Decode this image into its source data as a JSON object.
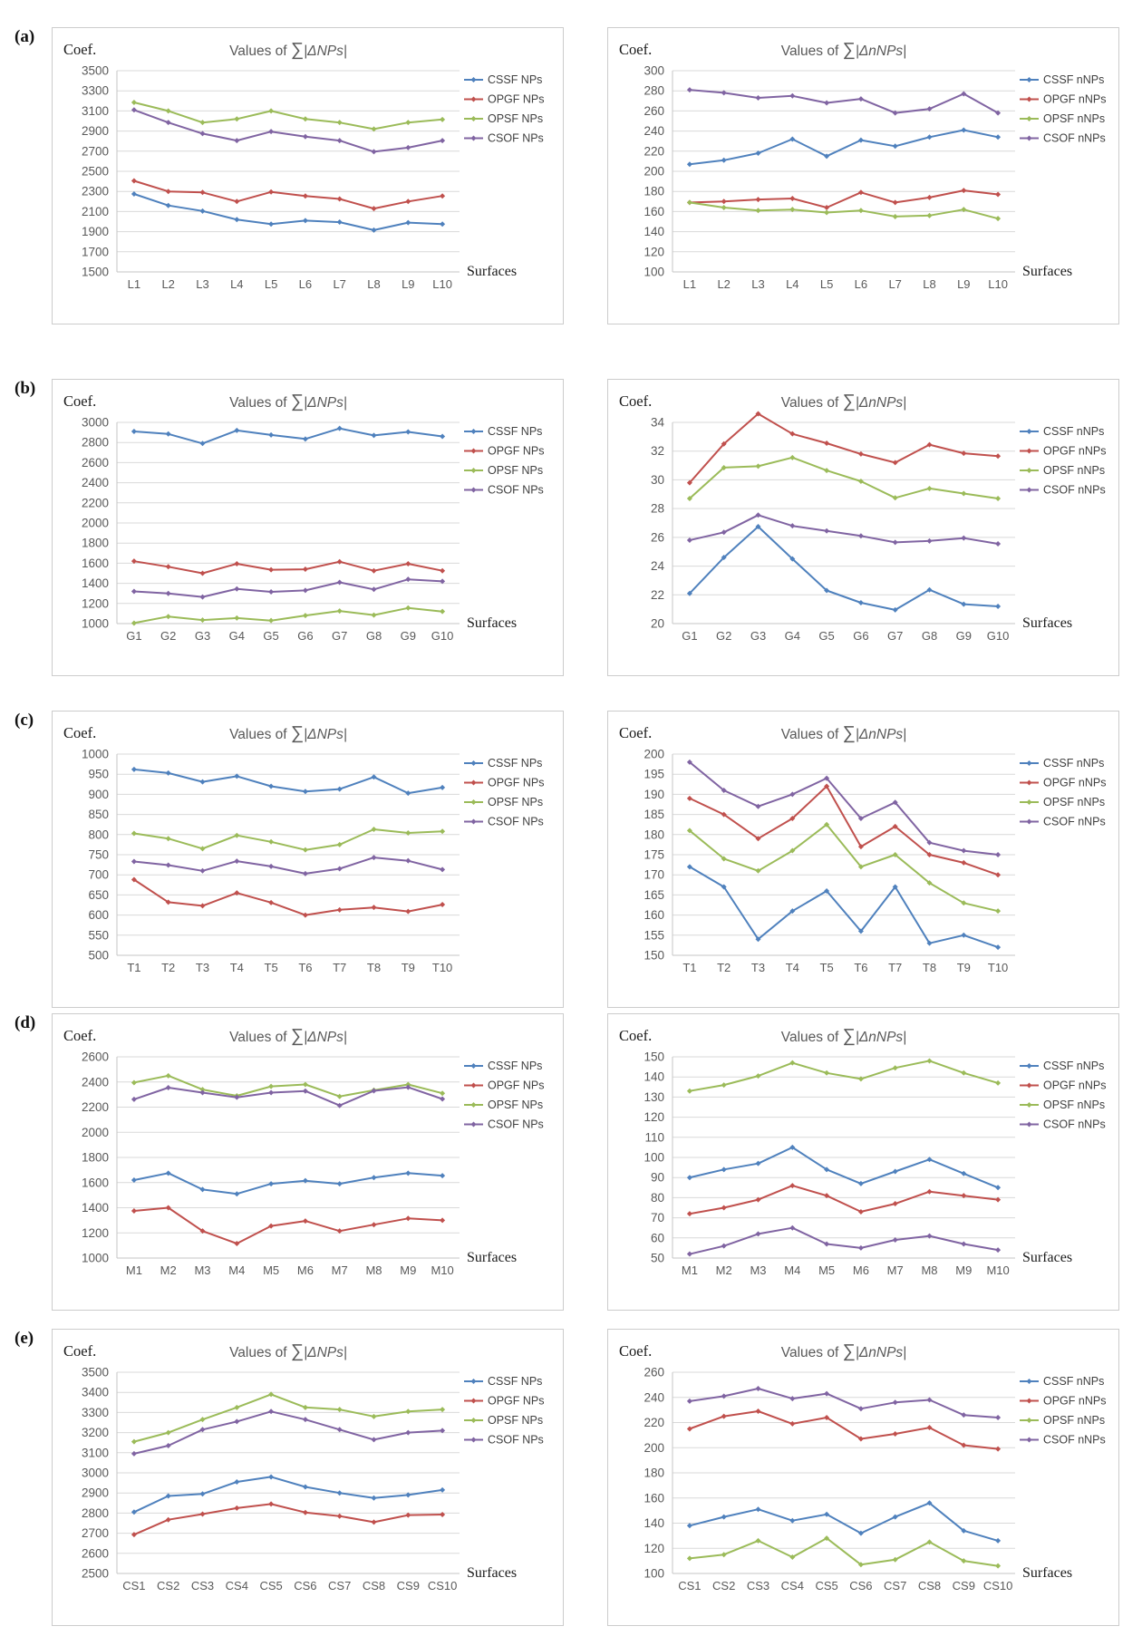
{
  "figure": {
    "row_labels": [
      "(a)",
      "(b)",
      "(c)",
      "(d)",
      "(e)"
    ],
    "colors": {
      "CSSF": "#4f81bd",
      "OPGF": "#c0504d",
      "OPSF": "#9bbb59",
      "CSOF": "#8064a2",
      "grid": "#d9d9d9",
      "axis_line": "#c6c6c6",
      "panel_border": "#cccccc",
      "tick_text": "#595959",
      "title_text": "#595959",
      "serif_text": "#1a1a1a",
      "legend_text": "#404040"
    }
  },
  "chart_data": [
    {
      "row": "a",
      "side": "left",
      "type": "line",
      "title": "Values of ∑|ΔNPs|",
      "ylabel": "Coef.",
      "xlabel": "Surfaces",
      "ylim": [
        1500,
        3500
      ],
      "ystep": 200,
      "grid": true,
      "legend_position": "right",
      "categories": [
        "L1",
        "L2",
        "L3",
        "L4",
        "L5",
        "L6",
        "L7",
        "L8",
        "L9",
        "L10"
      ],
      "series": [
        {
          "name": "CSSF NPs",
          "color": "CSSF",
          "values": [
            2275,
            2160,
            2105,
            2020,
            1975,
            2010,
            1995,
            1915,
            1990,
            1975
          ]
        },
        {
          "name": "OPGF NPs",
          "color": "OPGF",
          "values": [
            2405,
            2300,
            2290,
            2200,
            2295,
            2255,
            2225,
            2130,
            2200,
            2255
          ]
        },
        {
          "name": "OPSF NPs",
          "color": "OPSF",
          "values": [
            3185,
            3100,
            2985,
            3020,
            3100,
            3020,
            2985,
            2920,
            2985,
            3015
          ]
        },
        {
          "name": "CSOF NPs",
          "color": "CSOF",
          "values": [
            3110,
            2985,
            2875,
            2805,
            2895,
            2845,
            2805,
            2695,
            2735,
            2805
          ]
        }
      ]
    },
    {
      "row": "a",
      "side": "right",
      "type": "line",
      "title": "Values of ∑|ΔnNPs|",
      "ylabel": "Coef.",
      "xlabel": "Surfaces",
      "ylim": [
        100,
        300
      ],
      "ystep": 20,
      "grid": true,
      "legend_position": "right",
      "categories": [
        "L1",
        "L2",
        "L3",
        "L4",
        "L5",
        "L6",
        "L7",
        "L8",
        "L9",
        "L10"
      ],
      "series": [
        {
          "name": "CSSF nNPs",
          "color": "CSSF",
          "values": [
            207,
            211,
            218,
            232,
            215,
            231,
            225,
            234,
            241,
            234
          ]
        },
        {
          "name": "OPGF nNPs",
          "color": "OPGF",
          "values": [
            169,
            170,
            172,
            173,
            164,
            179,
            169,
            174,
            181,
            177
          ]
        },
        {
          "name": "OPSF nNPs",
          "color": "OPSF",
          "values": [
            169,
            164,
            161,
            162,
            159,
            161,
            155,
            156,
            162,
            153
          ]
        },
        {
          "name": "CSOF nNPs",
          "color": "CSOF",
          "values": [
            281,
            278,
            273,
            275,
            268,
            272,
            258,
            262,
            277,
            258
          ]
        }
      ]
    },
    {
      "row": "b",
      "side": "left",
      "type": "line",
      "title": "Values of ∑|ΔNPs|",
      "ylabel": "Coef.",
      "xlabel": "Surfaces",
      "ylim": [
        1000,
        3000
      ],
      "ystep": 200,
      "grid": true,
      "legend_position": "right",
      "categories": [
        "G1",
        "G2",
        "G3",
        "G4",
        "G5",
        "G6",
        "G7",
        "G8",
        "G9",
        "G10"
      ],
      "series": [
        {
          "name": "CSSF NPs",
          "color": "CSSF",
          "values": [
            2910,
            2885,
            2790,
            2920,
            2875,
            2835,
            2940,
            2870,
            2905,
            2860
          ]
        },
        {
          "name": "OPGF NPs",
          "color": "OPGF",
          "values": [
            1620,
            1565,
            1500,
            1595,
            1535,
            1540,
            1615,
            1525,
            1595,
            1525
          ]
        },
        {
          "name": "OPSF NPs",
          "color": "OPSF",
          "values": [
            1005,
            1070,
            1035,
            1055,
            1030,
            1080,
            1125,
            1085,
            1155,
            1120
          ]
        },
        {
          "name": "CSOF NPs",
          "color": "CSOF",
          "values": [
            1320,
            1300,
            1265,
            1345,
            1315,
            1330,
            1410,
            1340,
            1440,
            1420
          ]
        }
      ]
    },
    {
      "row": "b",
      "side": "right",
      "type": "line",
      "title": "Values of ∑|ΔnNPs|",
      "ylabel": "Coef.",
      "xlabel": "Surfaces",
      "ylim": [
        20,
        34
      ],
      "ystep": 2,
      "grid": true,
      "legend_position": "right",
      "categories": [
        "G1",
        "G2",
        "G3",
        "G4",
        "G5",
        "G6",
        "G7",
        "G8",
        "G9",
        "G10"
      ],
      "series": [
        {
          "name": "CSSF nNPs",
          "color": "CSSF",
          "values": [
            22.1,
            24.6,
            26.75,
            24.5,
            22.3,
            21.45,
            20.95,
            22.35,
            21.35,
            21.2
          ]
        },
        {
          "name": "OPGF nNPs",
          "color": "OPGF",
          "values": [
            29.8,
            32.5,
            34.6,
            33.2,
            32.55,
            31.8,
            31.2,
            32.45,
            31.85,
            31.65
          ]
        },
        {
          "name": "OPSF nNPs",
          "color": "OPSF",
          "values": [
            28.7,
            30.85,
            30.95,
            31.55,
            30.65,
            29.9,
            28.75,
            29.4,
            29.05,
            28.7
          ]
        },
        {
          "name": "CSOF nNPs",
          "color": "CSOF",
          "values": [
            25.8,
            26.35,
            27.55,
            26.8,
            26.45,
            26.1,
            25.65,
            25.75,
            25.95,
            25.55
          ]
        }
      ]
    },
    {
      "row": "c",
      "side": "left",
      "type": "line",
      "title": "Values of ∑|ΔNPs|",
      "ylabel": "Coef.",
      "xlabel": "",
      "ylim": [
        500,
        1000
      ],
      "ystep": 50,
      "grid": true,
      "legend_position": "right",
      "categories": [
        "T1",
        "T2",
        "T3",
        "T4",
        "T5",
        "T6",
        "T7",
        "T8",
        "T9",
        "T10"
      ],
      "series": [
        {
          "name": "CSSF NPs",
          "color": "CSSF",
          "values": [
            962,
            953,
            931,
            945,
            920,
            907,
            913,
            943,
            903,
            917
          ]
        },
        {
          "name": "OPGF NPs",
          "color": "OPGF",
          "values": [
            688,
            632,
            623,
            655,
            631,
            600,
            613,
            619,
            609,
            626
          ]
        },
        {
          "name": "OPSF NPs",
          "color": "OPSF",
          "values": [
            803,
            790,
            765,
            798,
            782,
            762,
            775,
            813,
            804,
            808
          ]
        },
        {
          "name": "CSOF NPs",
          "color": "CSOF",
          "values": [
            733,
            724,
            710,
            734,
            721,
            703,
            715,
            743,
            735,
            713
          ]
        }
      ]
    },
    {
      "row": "c",
      "side": "right",
      "type": "line",
      "title": "Values of ∑|ΔnNPs|",
      "ylabel": "Coef.",
      "xlabel": "",
      "ylim": [
        150,
        200
      ],
      "ystep": 5,
      "grid": true,
      "legend_position": "right",
      "categories": [
        "T1",
        "T2",
        "T3",
        "T4",
        "T5",
        "T6",
        "T7",
        "T8",
        "T9",
        "T10"
      ],
      "series": [
        {
          "name": "CSSF nNPs",
          "color": "CSSF",
          "values": [
            172,
            167,
            154,
            161,
            166,
            156,
            167,
            153,
            155,
            152
          ]
        },
        {
          "name": "OPGF nNPs",
          "color": "OPGF",
          "values": [
            189,
            185,
            179,
            184,
            192,
            177,
            182,
            175,
            173,
            170
          ]
        },
        {
          "name": "OPSF nNPs",
          "color": "OPSF",
          "values": [
            181,
            174,
            171,
            176,
            182.5,
            172,
            175,
            168,
            163,
            161
          ]
        },
        {
          "name": "CSOF nNPs",
          "color": "CSOF",
          "values": [
            198,
            191,
            187,
            190,
            194,
            184,
            188,
            178,
            176,
            175
          ]
        }
      ]
    },
    {
      "row": "d",
      "side": "left",
      "type": "line",
      "title": "Values of ∑|ΔNPs|",
      "ylabel": "Coef.",
      "xlabel": "Surfaces",
      "ylim": [
        1000,
        2600
      ],
      "ystep": 200,
      "grid": true,
      "legend_position": "right",
      "categories": [
        "M1",
        "M2",
        "M3",
        "M4",
        "M5",
        "M6",
        "M7",
        "M8",
        "M9",
        "M10"
      ],
      "series": [
        {
          "name": "CSSF NPs",
          "color": "CSSF",
          "values": [
            1620,
            1675,
            1545,
            1510,
            1590,
            1615,
            1590,
            1640,
            1675,
            1655
          ]
        },
        {
          "name": "OPGF NPs",
          "color": "OPGF",
          "values": [
            1375,
            1400,
            1215,
            1115,
            1255,
            1295,
            1215,
            1265,
            1315,
            1300
          ]
        },
        {
          "name": "OPSF NPs",
          "color": "OPSF",
          "values": [
            2395,
            2450,
            2340,
            2290,
            2365,
            2380,
            2285,
            2335,
            2380,
            2310
          ]
        },
        {
          "name": "CSOF NPs",
          "color": "CSOF",
          "values": [
            2262,
            2355,
            2315,
            2278,
            2315,
            2328,
            2213,
            2330,
            2358,
            2265
          ]
        }
      ]
    },
    {
      "row": "d",
      "side": "right",
      "type": "line",
      "title": "Values of ∑|ΔnNPs|",
      "ylabel": "Coef.",
      "xlabel": "Surfaces",
      "ylim": [
        50,
        150
      ],
      "ystep": 10,
      "grid": true,
      "legend_position": "right",
      "categories": [
        "M1",
        "M2",
        "M3",
        "M4",
        "M5",
        "M6",
        "M7",
        "M8",
        "M9",
        "M10"
      ],
      "series": [
        {
          "name": "CSSF nNPs",
          "color": "CSSF",
          "values": [
            90,
            94,
            97,
            105,
            94,
            87,
            93,
            99,
            92,
            85
          ]
        },
        {
          "name": "OPGF nNPs",
          "color": "OPGF",
          "values": [
            72,
            75,
            79,
            86,
            81,
            73,
            77,
            83,
            81,
            79
          ]
        },
        {
          "name": "OPSF nNPs",
          "color": "OPSF",
          "values": [
            133,
            136,
            140.5,
            147,
            142,
            139,
            144.5,
            148,
            142,
            137
          ]
        },
        {
          "name": "CSOF nNPs",
          "color": "CSOF",
          "values": [
            52,
            56,
            62,
            65,
            57,
            55,
            59,
            61,
            57,
            54
          ]
        }
      ]
    },
    {
      "row": "e",
      "side": "left",
      "type": "line",
      "title": "Values of ∑|ΔNPs|",
      "ylabel": "Coef.",
      "xlabel": "Surfaces",
      "ylim": [
        2500,
        3500
      ],
      "ystep": 100,
      "grid": true,
      "legend_position": "right",
      "categories": [
        "CS1",
        "CS2",
        "CS3",
        "CS4",
        "CS5",
        "CS6",
        "CS7",
        "CS8",
        "CS9",
        "CS10"
      ],
      "series": [
        {
          "name": "CSSF NPs",
          "color": "CSSF",
          "values": [
            2805,
            2885,
            2895,
            2955,
            2980,
            2930,
            2900,
            2875,
            2890,
            2915
          ]
        },
        {
          "name": "OPGF NPs",
          "color": "OPGF",
          "values": [
            2693,
            2767,
            2795,
            2825,
            2845,
            2803,
            2785,
            2755,
            2790,
            2793
          ]
        },
        {
          "name": "OPSF NPs",
          "color": "OPSF",
          "values": [
            3155,
            3200,
            3265,
            3325,
            3390,
            3325,
            3315,
            3280,
            3305,
            3315
          ]
        },
        {
          "name": "CSOF NPs",
          "color": "CSOF",
          "values": [
            3095,
            3135,
            3215,
            3255,
            3305,
            3265,
            3215,
            3165,
            3200,
            3210
          ]
        }
      ]
    },
    {
      "row": "e",
      "side": "right",
      "type": "line",
      "title": "Values of ∑|ΔnNPs|",
      "ylabel": "Coef.",
      "xlabel": "Surfaces",
      "ylim": [
        100,
        260
      ],
      "ystep": 20,
      "grid": true,
      "legend_position": "right",
      "categories": [
        "CS1",
        "CS2",
        "CS3",
        "CS4",
        "CS5",
        "CS6",
        "CS7",
        "CS8",
        "CS9",
        "CS10"
      ],
      "series": [
        {
          "name": "CSSF nNPs",
          "color": "CSSF",
          "values": [
            138,
            145,
            151,
            142,
            147,
            132,
            145,
            156,
            134,
            126
          ]
        },
        {
          "name": "OPGF nNPs",
          "color": "OPGF",
          "values": [
            215,
            225,
            229,
            219,
            224,
            207,
            211,
            216,
            202,
            199
          ]
        },
        {
          "name": "OPSF nNPs",
          "color": "OPSF",
          "values": [
            112,
            115,
            126,
            113,
            128,
            107,
            111,
            125,
            110,
            106
          ]
        },
        {
          "name": "CSOF nNPs",
          "color": "CSOF",
          "values": [
            237,
            241,
            247,
            239,
            243,
            231,
            236,
            238,
            226,
            224
          ]
        }
      ]
    }
  ]
}
